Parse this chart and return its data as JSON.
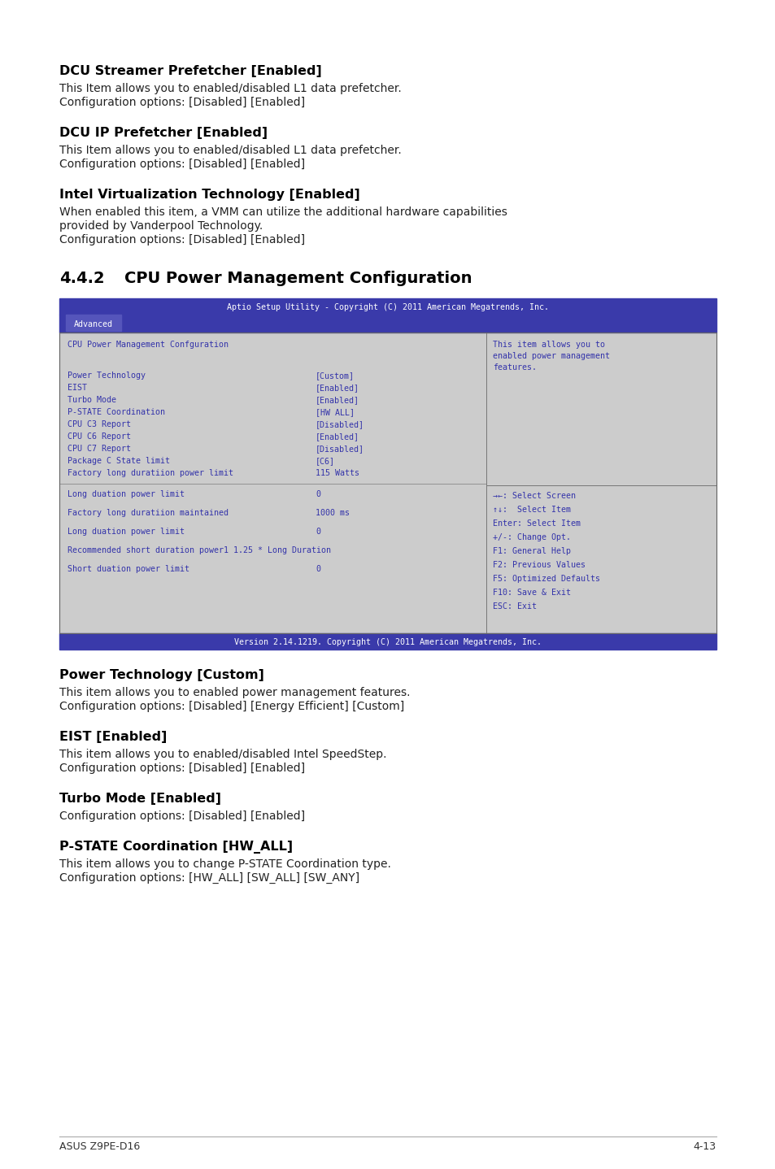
{
  "page_bg": "#ffffff",
  "text_color": "#000000",
  "body_color": "#222222",
  "blue_dark": "#3333aa",
  "bios_bg": "#cccccc",
  "items_top": [
    {
      "title": "DCU Streamer Prefetcher [Enabled]",
      "lines": [
        "This Item allows you to enabled/disabled L1 data prefetcher.",
        "Configuration options: [Disabled] [Enabled]"
      ]
    },
    {
      "title": "DCU IP Prefetcher [Enabled]",
      "lines": [
        "This Item allows you to enabled/disabled L1 data prefetcher.",
        "Configuration options: [Disabled] [Enabled]"
      ]
    },
    {
      "title": "Intel Virtualization Technology [Enabled]",
      "lines": [
        "When enabled this item, a VMM can utilize the additional hardware capabilities",
        "provided by Vanderpool Technology.",
        "Configuration options: [Disabled] [Enabled]"
      ]
    }
  ],
  "section_num": "4.4.2",
  "section_title": "CPU Power Management Configuration",
  "bios_title_bar": "Aptio Setup Utility - Copyright (C) 2011 American Megatrends, Inc.",
  "bios_tab": "Advanced",
  "bios_left_title": "CPU Power Management Confguration",
  "bios_right_title_lines": [
    "This item allows you to",
    "enabled power management",
    "features."
  ],
  "bios_menu_items": [
    [
      "Power Technology",
      "[Custom]"
    ],
    [
      "EIST",
      "[Enabled]"
    ],
    [
      "Turbo Mode",
      "[Enabled]"
    ],
    [
      "P-STATE Coordination",
      "[HW ALL]"
    ],
    [
      "CPU C3 Report",
      "[Disabled]"
    ],
    [
      "CPU C6 Report",
      "[Enabled]"
    ],
    [
      "CPU C7 Report",
      "[Disabled]"
    ],
    [
      "Package C State limit",
      "[C6]"
    ],
    [
      "Factory long duratiion power limit",
      "115 Watts"
    ]
  ],
  "bios_menu_items2": [
    [
      "Long duation power limit",
      "0",
      false
    ],
    [
      "Factory long duratiion maintained",
      "1000 ms",
      false
    ],
    [
      "Long duation power limit",
      "0",
      false
    ],
    [
      "Recommended short duration power1 1.25 * Long Duration",
      "",
      false
    ],
    [
      "Short duation power limit",
      "0",
      false
    ]
  ],
  "bios_right_help_lines": [
    "→←: Select Screen",
    "↑↓:  Select Item",
    "Enter: Select Item",
    "+/-: Change Opt.",
    "F1: General Help",
    "F2: Previous Values",
    "F5: Optimized Defaults",
    "F10: Save & Exit",
    "ESC: Exit"
  ],
  "bios_footer": "Version 2.14.1219. Copyright (C) 2011 American Megatrends, Inc.",
  "items_bottom": [
    {
      "title": "Power Technology [Custom]",
      "lines": [
        "This item allows you to enabled power management features.",
        "Configuration options: [Disabled] [Energy Efficient] [Custom]"
      ]
    },
    {
      "title": "EIST [Enabled]",
      "lines": [
        "This item allows you to enabled/disabled Intel SpeedStep.",
        "Configuration options: [Disabled] [Enabled]"
      ]
    },
    {
      "title": "Turbo Mode [Enabled]",
      "lines": [
        "Configuration options: [Disabled] [Enabled]"
      ]
    },
    {
      "title": "P-STATE Coordination [HW_ALL]",
      "lines": [
        "This item allows you to change P-STATE Coordination type.",
        "Configuration options: [HW_ALL] [SW_ALL] [SW_ANY]"
      ]
    }
  ],
  "footer_left": "ASUS Z9PE-D16",
  "footer_right": "4-13"
}
